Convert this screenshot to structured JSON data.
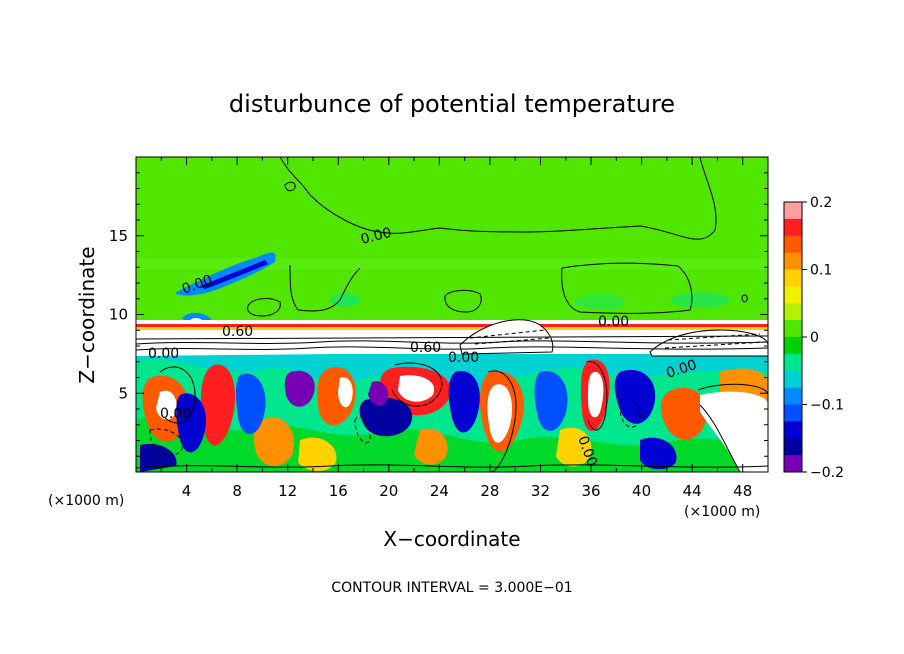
{
  "chart_data": {
    "type": "heatmap",
    "title": "disturbunce of potential temperature",
    "xlabel": "X−coordinate",
    "ylabel": "Z−coordinate",
    "x_unit_left": "(×1000 m)",
    "x_unit_right": "(×1000 m)",
    "xlim": [
      0,
      50
    ],
    "ylim": [
      0,
      20
    ],
    "x_ticks": [
      4,
      8,
      12,
      16,
      20,
      24,
      28,
      32,
      36,
      40,
      44,
      48
    ],
    "x_tick_labels": [
      "4",
      "8",
      "12",
      "16",
      "20",
      "24",
      "28",
      "32",
      "36",
      "40",
      "44",
      "48"
    ],
    "y_ticks": [
      5,
      10,
      15
    ],
    "y_tick_labels": [
      "5",
      "10",
      "15"
    ],
    "colorbar": {
      "range": [
        -0.2,
        0.2
      ],
      "ticks": [
        0.2,
        0.1,
        0,
        -0.1,
        -0.2
      ],
      "tick_labels": [
        "0.2",
        "0.1",
        "0",
        "−0.1",
        "−0.2"
      ],
      "colors": [
        "#ff9fa0",
        "#ff1f1f",
        "#ff5a00",
        "#ff9000",
        "#ffd200",
        "#f0f000",
        "#b4f000",
        "#50e600",
        "#00d200",
        "#00e68c",
        "#00d2d2",
        "#008cff",
        "#0050ff",
        "#0000d2",
        "#0000a0",
        "#7800b4"
      ]
    },
    "contour_labels": [
      "0.00",
      "0.00",
      "0.00",
      "0.00",
      "0.60",
      "0.00",
      "0.60",
      "0.00",
      "0.00",
      "0.00"
    ],
    "contour_interval": "CONTOUR INTERVAL = 3.000E−01",
    "grid": false
  }
}
